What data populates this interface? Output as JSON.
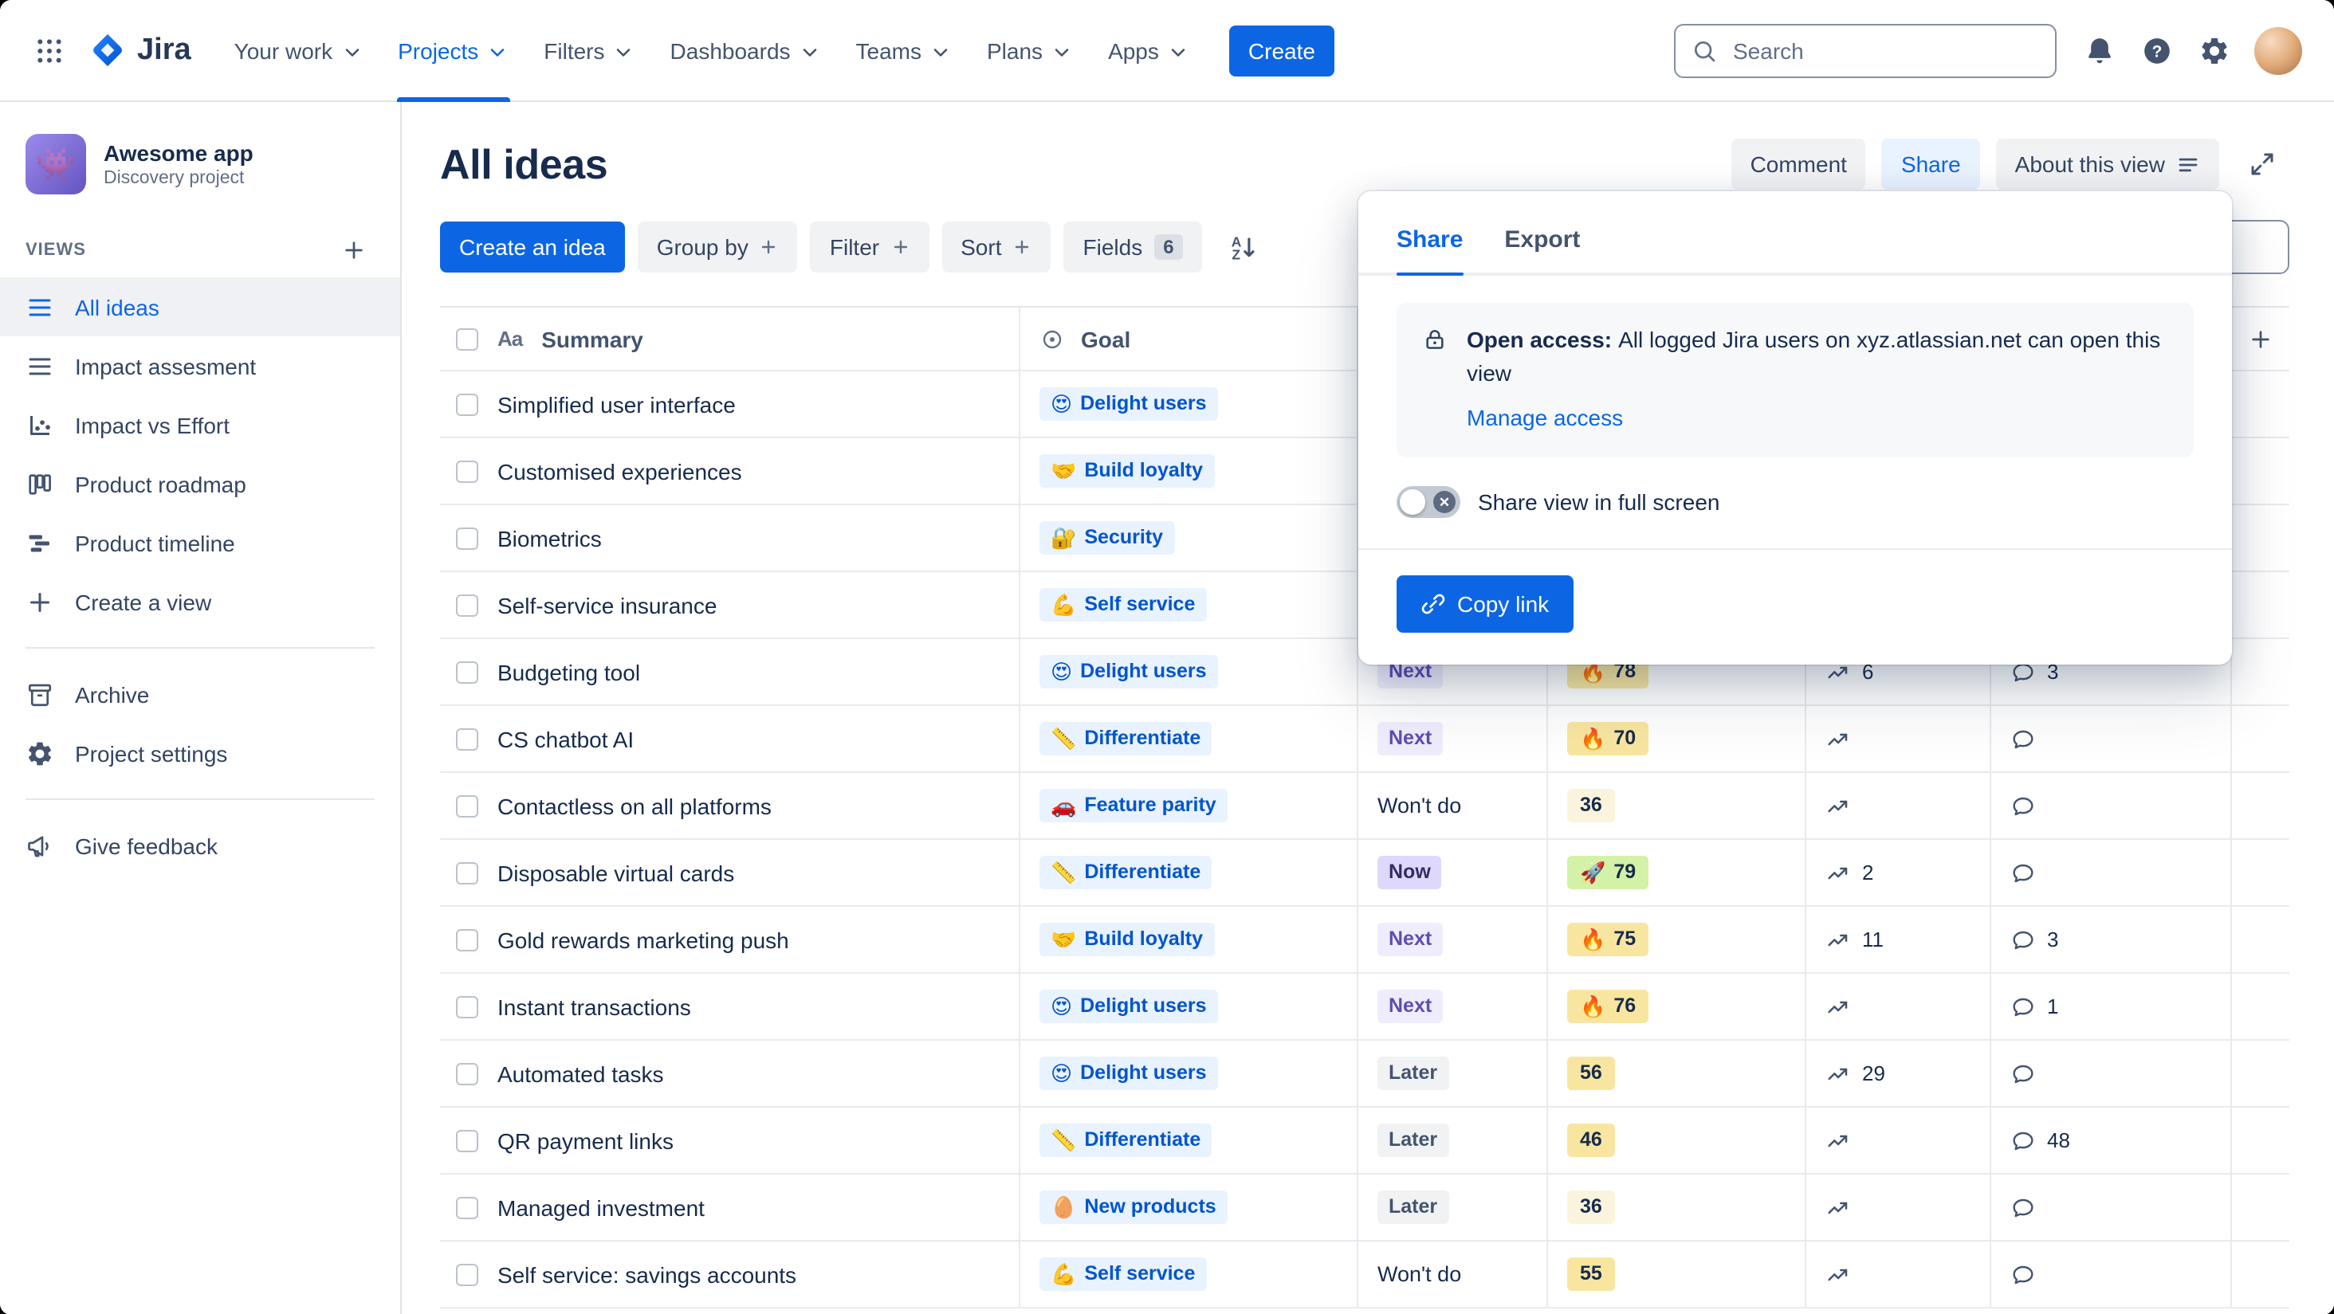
{
  "navbar": {
    "brand": "Jira",
    "items": [
      {
        "label": "Your work"
      },
      {
        "label": "Projects",
        "active": true
      },
      {
        "label": "Filters"
      },
      {
        "label": "Dashboards"
      },
      {
        "label": "Teams"
      },
      {
        "label": "Plans"
      },
      {
        "label": "Apps"
      }
    ],
    "create_button": "Create",
    "search_placeholder": "Search"
  },
  "sidebar": {
    "project_name": "Awesome app",
    "project_type": "Discovery project",
    "project_avatar_emoji": "👾",
    "views_heading": "VIEWS",
    "views": [
      {
        "label": "All ideas",
        "icon": "list",
        "selected": true
      },
      {
        "label": "Impact assesment",
        "icon": "list"
      },
      {
        "label": "Impact vs Effort",
        "icon": "scatter"
      },
      {
        "label": "Product roadmap",
        "icon": "board"
      },
      {
        "label": "Product timeline",
        "icon": "timeline"
      },
      {
        "label": "Create a view",
        "icon": "plus"
      }
    ],
    "tools": [
      {
        "label": "Archive",
        "icon": "archive"
      },
      {
        "label": "Project settings",
        "icon": "gear"
      }
    ],
    "feedback_label": "Give feedback"
  },
  "header": {
    "title": "All ideas",
    "comment_button": "Comment",
    "share_button": "Share",
    "about_button": "About this view"
  },
  "toolbar": {
    "create_idea_button": "Create an idea",
    "group_by_button": "Group by",
    "filter_button": "Filter",
    "sort_button": "Sort",
    "fields_button": "Fields",
    "fields_count": "6"
  },
  "table": {
    "summary_icon": "Aa",
    "summary_header": "Summary",
    "goal_header": "Goal",
    "rows": [
      {
        "summary": "Simplified user interface",
        "goal": {
          "emoji": "😍",
          "label": "Delight users"
        }
      },
      {
        "summary": "Customised experiences",
        "goal": {
          "emoji": "🤝",
          "label": "Build loyalty"
        }
      },
      {
        "summary": "Biometrics",
        "goal": {
          "emoji": "🔐",
          "label": "Security"
        }
      },
      {
        "summary": "Self-service insurance",
        "goal": {
          "emoji": "💪",
          "label": "Self service"
        }
      },
      {
        "summary": "Budgeting tool",
        "goal": {
          "emoji": "😍",
          "label": "Delight users"
        },
        "status": {
          "label": "Next",
          "tone": "next"
        },
        "score": {
          "emoji": "🔥",
          "value": "78",
          "bg": "#F8E6A0"
        },
        "trend": "6",
        "comments": "3"
      },
      {
        "summary": "CS chatbot AI",
        "goal": {
          "emoji": "📏",
          "label": "Differentiate"
        },
        "status": {
          "label": "Next",
          "tone": "next"
        },
        "score": {
          "emoji": "🔥",
          "value": "70",
          "bg": "#F8E6A0"
        },
        "trend": "",
        "comments": ""
      },
      {
        "summary": "Contactless on all platforms",
        "goal": {
          "emoji": "🚗",
          "label": "Feature parity"
        },
        "status": {
          "label": "Won't do",
          "tone": "wontdo"
        },
        "score": {
          "emoji": "",
          "value": "36",
          "bg": "#FBF4DC"
        },
        "trend": "",
        "comments": ""
      },
      {
        "summary": "Disposable virtual cards",
        "goal": {
          "emoji": "📏",
          "label": "Differentiate"
        },
        "status": {
          "label": "Now",
          "tone": "now"
        },
        "score": {
          "emoji": "🚀",
          "value": "79",
          "bg": "#D3F1A7"
        },
        "trend": "2",
        "comments": ""
      },
      {
        "summary": "Gold rewards marketing push",
        "goal": {
          "emoji": "🤝",
          "label": "Build loyalty"
        },
        "status": {
          "label": "Next",
          "tone": "next"
        },
        "score": {
          "emoji": "🔥",
          "value": "75",
          "bg": "#F8E6A0"
        },
        "trend": "11",
        "comments": "3"
      },
      {
        "summary": "Instant transactions",
        "goal": {
          "emoji": "😍",
          "label": "Delight users"
        },
        "status": {
          "label": "Next",
          "tone": "next"
        },
        "score": {
          "emoji": "🔥",
          "value": "76",
          "bg": "#F8E6A0"
        },
        "trend": "",
        "comments": "1"
      },
      {
        "summary": "Automated tasks",
        "goal": {
          "emoji": "😍",
          "label": "Delight users"
        },
        "status": {
          "label": "Later",
          "tone": "later"
        },
        "score": {
          "emoji": "",
          "value": "56",
          "bg": "#F8E6A0"
        },
        "trend": "29",
        "comments": ""
      },
      {
        "summary": "QR payment links",
        "goal": {
          "emoji": "📏",
          "label": "Differentiate"
        },
        "status": {
          "label": "Later",
          "tone": "later"
        },
        "score": {
          "emoji": "",
          "value": "46",
          "bg": "#F8E6A0"
        },
        "trend": "",
        "comments": "48"
      },
      {
        "summary": "Managed investment",
        "goal": {
          "emoji": "🥚",
          "label": "New products"
        },
        "status": {
          "label": "Later",
          "tone": "later"
        },
        "score": {
          "emoji": "",
          "value": "36",
          "bg": "#FBF4DC"
        },
        "trend": "",
        "comments": ""
      },
      {
        "summary": "Self service: savings accounts",
        "goal": {
          "emoji": "💪",
          "label": "Self service"
        },
        "status": {
          "label": "Won't do",
          "tone": "wontdo"
        },
        "score": {
          "emoji": "",
          "value": "55",
          "bg": "#F8E6A0"
        },
        "trend": "",
        "comments": ""
      }
    ]
  },
  "share_popover": {
    "tab_share": "Share",
    "tab_export": "Export",
    "open_access_label": "Open access:",
    "open_access_text": "All logged Jira users on xyz.atlassian.net can open this view",
    "manage_access_link": "Manage access",
    "fullscreen_toggle_label": "Share view in full screen",
    "copy_link_button": "Copy link"
  },
  "colors": {
    "accent_blue": "#0C66E4",
    "share_button_bg": "#E9F2FF",
    "goal_chip_bg": "#E9F2FF",
    "goal_chip_text": "#0055CC",
    "status_next_bg": "#EFEDFD",
    "status_now_bg": "#DFD8FD",
    "status_later_bg": "#F1F2F4",
    "score_yellow_bg": "#F8E6A0",
    "score_lime_bg": "#D3F1A7"
  }
}
